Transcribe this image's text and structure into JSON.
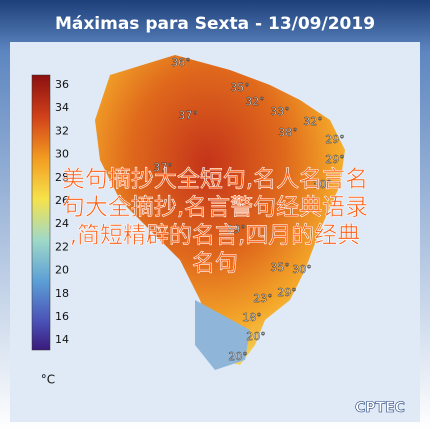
{
  "title": "Máximas para Sexta - 13/09/2019",
  "legend": {
    "ticks": [
      36,
      34,
      32,
      30,
      28,
      26,
      24,
      22,
      20,
      18,
      16,
      14
    ],
    "unit": "°C"
  },
  "map_labels": [
    "36°",
    "35°",
    "32°",
    "33°",
    "32°",
    "37°",
    "38°",
    "29°",
    "29°",
    "37°",
    "30°",
    "39°",
    "35°",
    "30°",
    "29°",
    "23°",
    "18°",
    "20°",
    "20°"
  ],
  "overlay_lines": [
    "美句摘抄大全短句,名人名言名",
    "句大全摘抄,名言警句经典语录",
    ",简短精辟的名言,四月的经典",
    "名句"
  ],
  "logo": "CPTEC"
}
